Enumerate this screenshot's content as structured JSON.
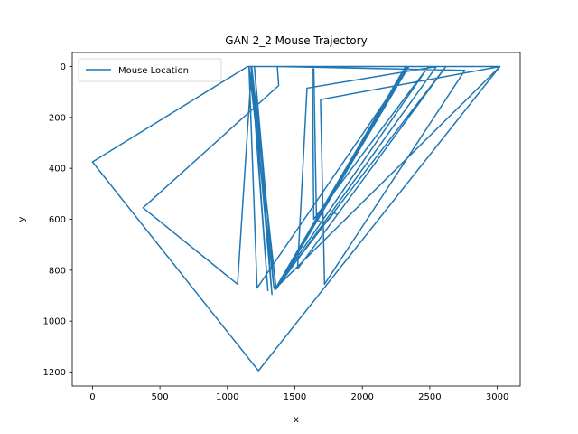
{
  "chart_data": {
    "type": "line",
    "title": "GAN 2_2 Mouse Trajectory",
    "xlabel": "x",
    "ylabel": "y",
    "xlim": [
      -150,
      3170
    ],
    "ylim": [
      1255,
      -55
    ],
    "y_inverted": true,
    "grid": false,
    "legend_position": "upper-left",
    "x_ticks": [
      0,
      500,
      1000,
      1500,
      2000,
      2500,
      3000
    ],
    "y_ticks": [
      0,
      200,
      400,
      600,
      800,
      1000,
      1200
    ],
    "series": [
      {
        "name": "Mouse Location",
        "color": "#1f77b4",
        "x": [
          1810,
          1790,
          1720,
          1660,
          1640,
          1160,
          1220,
          2345,
          1380,
          2335,
          1375,
          2330,
          1370,
          2325,
          1365,
          2320,
          1360,
          1175,
          1300,
          1180,
          1330,
          1200,
          1345,
          1160,
          1170,
          3020,
          1350,
          2620,
          1520,
          1590,
          2550,
          1360,
          1180,
          1075,
          375,
          1380,
          1370,
          2760,
          1720,
          1690,
          3020,
          1230,
          0,
          1150,
          1630,
          1640,
          2490,
          1360
        ],
        "y": [
          580,
          575,
          620,
          600,
          0,
          0,
          870,
          0,
          860,
          0,
          862,
          0,
          864,
          0,
          866,
          0,
          868,
          0,
          880,
          0,
          895,
          0,
          870,
          0,
          0,
          0,
          875,
          0,
          795,
          85,
          0,
          875,
          0,
          855,
          555,
          75,
          0,
          15,
          855,
          130,
          0,
          1195,
          375,
          0,
          0,
          600,
          0,
          870
        ]
      }
    ]
  }
}
